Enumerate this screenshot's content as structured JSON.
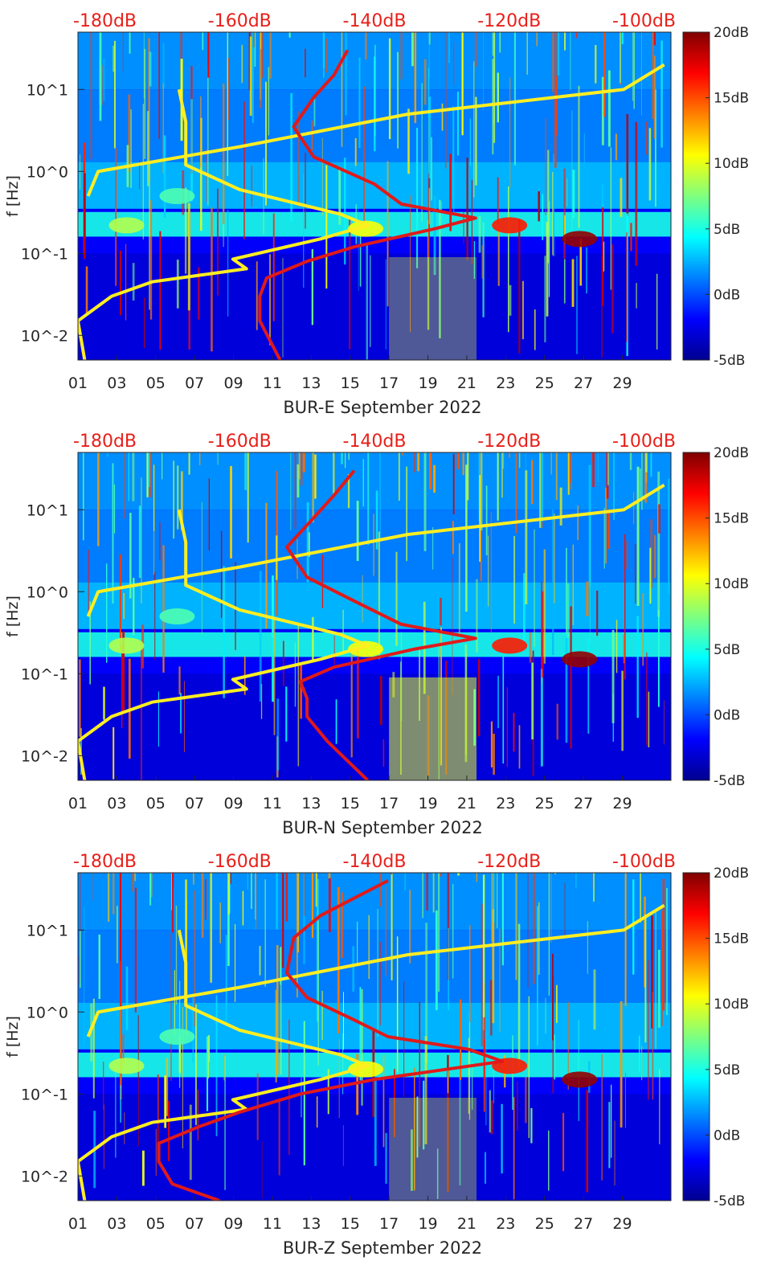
{
  "colormap": [
    "#00008f",
    "#0000ff",
    "#007fff",
    "#00ffff",
    "#7fff7f",
    "#ffff00",
    "#ff7f00",
    "#ff0000",
    "#7f0000"
  ],
  "line_colors": {
    "noise_model_low_high": "#ffee22",
    "median_psd": "#e01a1a"
  },
  "chart_data": [
    {
      "type": "heatmap",
      "xlabel": "BUR-E September 2022",
      "ylabel": "f [Hz]",
      "x_ticks": [
        "01",
        "03",
        "05",
        "07",
        "09",
        "11",
        "13",
        "15",
        "17",
        "19",
        "21",
        "23",
        "25",
        "27",
        "29"
      ],
      "y_ticks": [
        "10^-2",
        "10^-1",
        "10^0",
        "10^1"
      ],
      "y_scale": "log",
      "ylim": [
        0.005,
        50
      ],
      "top_ticks": [
        "-180dB",
        "-160dB",
        "-140dB",
        "-120dB",
        "-100dB"
      ],
      "top_range_db": [
        -184,
        -96
      ],
      "colorbar": {
        "ticks": [
          "-5dB",
          "0dB",
          "5dB",
          "10dB",
          "15dB",
          "20dB"
        ],
        "range": [
          -5,
          20
        ]
      },
      "series": [
        {
          "role": "high",
          "points": [
            [
              0.5,
              -182.5
            ],
            [
              1.0,
              -181
            ],
            [
              2.0,
              -160
            ],
            [
              5.0,
              -135
            ],
            [
              10,
              -103
            ],
            [
              20,
              -97
            ]
          ]
        },
        {
          "role": "low",
          "points": [
            [
              0.005,
              -183
            ],
            [
              0.015,
              -184
            ],
            [
              0.03,
              -179
            ],
            [
              0.045,
              -173
            ],
            [
              0.065,
              -159
            ],
            [
              0.085,
              -161
            ],
            [
              0.15,
              -148
            ],
            [
              0.22,
              -141
            ],
            [
              0.3,
              -145
            ],
            [
              0.6,
              -160
            ],
            [
              1.2,
              -168
            ],
            [
              4,
              -168
            ],
            [
              10,
              -169
            ]
          ]
        },
        {
          "role": "mode",
          "points": [
            [
              0.005,
              -154
            ],
            [
              0.015,
              -157
            ],
            [
              0.03,
              -157
            ],
            [
              0.05,
              -156
            ],
            [
              0.08,
              -150
            ],
            [
              0.12,
              -143
            ],
            [
              0.2,
              -131
            ],
            [
              0.27,
              -125
            ],
            [
              0.4,
              -136
            ],
            [
              0.7,
              -140
            ],
            [
              1.5,
              -149
            ],
            [
              3.5,
              -152
            ],
            [
              8,
              -149
            ],
            [
              15,
              -146
            ],
            [
              30,
              -144
            ]
          ]
        }
      ]
    },
    {
      "type": "heatmap",
      "xlabel": "BUR-N September 2022",
      "ylabel": "f [Hz]",
      "x_ticks": [
        "01",
        "03",
        "05",
        "07",
        "09",
        "11",
        "13",
        "15",
        "17",
        "19",
        "21",
        "23",
        "25",
        "27",
        "29"
      ],
      "y_ticks": [
        "10^-2",
        "10^-1",
        "10^0",
        "10^1"
      ],
      "y_scale": "log",
      "ylim": [
        0.005,
        50
      ],
      "top_ticks": [
        "-180dB",
        "-160dB",
        "-140dB",
        "-120dB",
        "-100dB"
      ],
      "top_range_db": [
        -184,
        -96
      ],
      "colorbar": {
        "ticks": [
          "-5dB",
          "0dB",
          "5dB",
          "10dB",
          "15dB",
          "20dB"
        ],
        "range": [
          -5,
          20
        ]
      },
      "series": [
        {
          "role": "high",
          "points": [
            [
              0.5,
              -182.5
            ],
            [
              1.0,
              -181
            ],
            [
              2.0,
              -160
            ],
            [
              5.0,
              -135
            ],
            [
              10,
              -103
            ],
            [
              20,
              -97
            ]
          ]
        },
        {
          "role": "low",
          "points": [
            [
              0.005,
              -183
            ],
            [
              0.015,
              -184
            ],
            [
              0.03,
              -179
            ],
            [
              0.045,
              -173
            ],
            [
              0.065,
              -159
            ],
            [
              0.085,
              -161
            ],
            [
              0.15,
              -148
            ],
            [
              0.22,
              -141
            ],
            [
              0.3,
              -145
            ],
            [
              0.6,
              -160
            ],
            [
              1.2,
              -168
            ],
            [
              4,
              -168
            ],
            [
              10,
              -169
            ]
          ]
        },
        {
          "role": "mode",
          "points": [
            [
              0.005,
              -141
            ],
            [
              0.015,
              -147
            ],
            [
              0.03,
              -150
            ],
            [
              0.05,
              -150
            ],
            [
              0.08,
              -151
            ],
            [
              0.12,
              -146
            ],
            [
              0.2,
              -134
            ],
            [
              0.27,
              -125
            ],
            [
              0.4,
              -136
            ],
            [
              0.7,
              -142
            ],
            [
              1.5,
              -150
            ],
            [
              3.5,
              -153
            ],
            [
              8,
              -149
            ],
            [
              15,
              -146
            ],
            [
              30,
              -143
            ]
          ]
        }
      ]
    },
    {
      "type": "heatmap",
      "xlabel": "BUR-Z September 2022",
      "ylabel": "f [Hz]",
      "x_ticks": [
        "01",
        "03",
        "05",
        "07",
        "09",
        "11",
        "13",
        "15",
        "17",
        "19",
        "21",
        "23",
        "25",
        "27",
        "29"
      ],
      "y_ticks": [
        "10^-2",
        "10^-1",
        "10^0",
        "10^1"
      ],
      "y_scale": "log",
      "ylim": [
        0.005,
        50
      ],
      "top_ticks": [
        "-180dB",
        "-160dB",
        "-140dB",
        "-120dB",
        "-100dB"
      ],
      "top_range_db": [
        -184,
        -96
      ],
      "colorbar": {
        "ticks": [
          "-5dB",
          "0dB",
          "5dB",
          "10dB",
          "15dB",
          "20dB"
        ],
        "range": [
          -5,
          20
        ]
      },
      "series": [
        {
          "role": "high",
          "points": [
            [
              0.5,
              -182.5
            ],
            [
              1.0,
              -181
            ],
            [
              2.0,
              -160
            ],
            [
              5.0,
              -135
            ],
            [
              10,
              -103
            ],
            [
              20,
              -97
            ]
          ]
        },
        {
          "role": "low",
          "points": [
            [
              0.005,
              -183
            ],
            [
              0.015,
              -184
            ],
            [
              0.03,
              -179
            ],
            [
              0.045,
              -173
            ],
            [
              0.065,
              -159
            ],
            [
              0.085,
              -161
            ],
            [
              0.15,
              -148
            ],
            [
              0.22,
              -141
            ],
            [
              0.3,
              -145
            ],
            [
              0.6,
              -160
            ],
            [
              1.2,
              -168
            ],
            [
              4,
              -168
            ],
            [
              10,
              -169
            ]
          ]
        },
        {
          "role": "mode",
          "points": [
            [
              0.005,
              -163
            ],
            [
              0.008,
              -170
            ],
            [
              0.015,
              -172
            ],
            [
              0.025,
              -172
            ],
            [
              0.04,
              -166
            ],
            [
              0.06,
              -160
            ],
            [
              0.1,
              -151
            ],
            [
              0.15,
              -140
            ],
            [
              0.25,
              -121
            ],
            [
              0.35,
              -126
            ],
            [
              0.5,
              -138
            ],
            [
              0.8,
              -143
            ],
            [
              1.5,
              -150
            ],
            [
              3,
              -153
            ],
            [
              8,
              -152
            ],
            [
              15,
              -148
            ],
            [
              40,
              -138
            ]
          ]
        }
      ]
    }
  ]
}
